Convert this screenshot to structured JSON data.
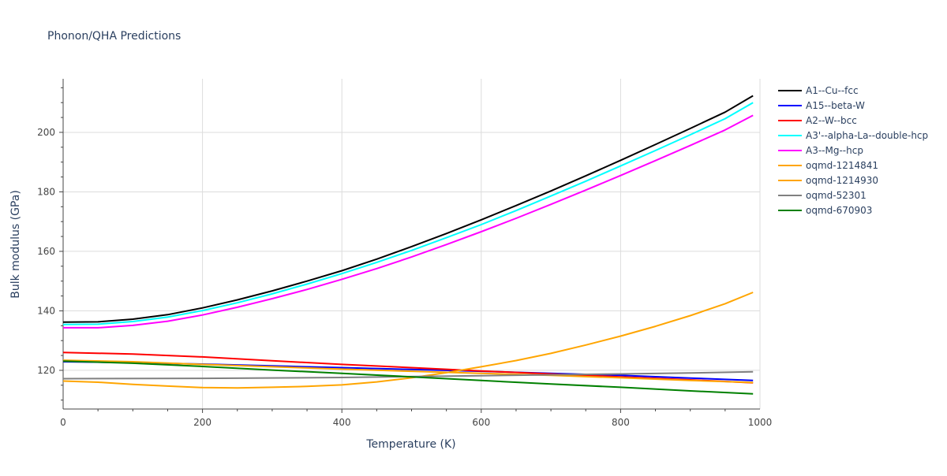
{
  "chart_data": {
    "type": "line",
    "title": "Phonon/QHA Predictions",
    "xlabel": "Temperature (K)",
    "ylabel": "Bulk modulus (GPa)",
    "xlim": [
      0,
      1000
    ],
    "ylim": [
      107,
      218
    ],
    "xticks": [
      0,
      200,
      400,
      600,
      800,
      1000
    ],
    "yticks": [
      120,
      140,
      160,
      180,
      200
    ],
    "grid": true,
    "legend_position": "right",
    "series": [
      {
        "name": "A1--Cu--fcc",
        "color": "#000000",
        "x": [
          0,
          50,
          100,
          150,
          200,
          250,
          300,
          350,
          400,
          450,
          500,
          550,
          600,
          650,
          700,
          750,
          800,
          850,
          900,
          950,
          990
        ],
        "y": [
          136.2,
          136.3,
          137.2,
          138.7,
          141.0,
          143.7,
          146.7,
          150.0,
          153.5,
          157.4,
          161.6,
          166.0,
          170.6,
          175.4,
          180.3,
          185.4,
          190.6,
          195.9,
          201.3,
          206.8,
          212.3
        ]
      },
      {
        "name": "A15--beta-W",
        "color": "#0000ff",
        "x": [
          0,
          100,
          200,
          300,
          400,
          500,
          600,
          700,
          800,
          900,
          990
        ],
        "y": [
          122.9,
          122.6,
          122.1,
          121.5,
          120.9,
          120.3,
          119.7,
          119.0,
          118.3,
          117.4,
          116.6
        ]
      },
      {
        "name": "A2--W--bcc",
        "color": "#ff0000",
        "x": [
          0,
          100,
          200,
          300,
          400,
          500,
          600,
          700,
          800,
          900,
          990
        ],
        "y": [
          126.0,
          125.5,
          124.5,
          123.2,
          122.0,
          120.9,
          119.8,
          118.8,
          117.8,
          116.8,
          115.8
        ]
      },
      {
        "name": "A3'--alpha-La--double-hcp",
        "color": "#00ffff",
        "x": [
          0,
          50,
          100,
          150,
          200,
          250,
          300,
          350,
          400,
          450,
          500,
          550,
          600,
          650,
          700,
          750,
          800,
          850,
          900,
          950,
          990
        ],
        "y": [
          135.4,
          135.5,
          136.4,
          137.9,
          140.1,
          142.7,
          145.7,
          149.0,
          152.5,
          156.3,
          160.3,
          164.6,
          169.0,
          173.7,
          178.6,
          183.6,
          188.7,
          193.9,
          199.2,
          204.6,
          210.0
        ]
      },
      {
        "name": "A3--Mg--hcp",
        "color": "#ff00ff",
        "x": [
          0,
          50,
          100,
          150,
          200,
          250,
          300,
          350,
          400,
          450,
          500,
          550,
          600,
          650,
          700,
          750,
          800,
          850,
          900,
          950,
          990
        ],
        "y": [
          134.3,
          134.3,
          135.1,
          136.5,
          138.6,
          141.2,
          144.1,
          147.2,
          150.6,
          154.2,
          158.1,
          162.3,
          166.6,
          171.1,
          175.8,
          180.6,
          185.5,
          190.5,
          195.6,
          200.8,
          205.7
        ]
      },
      {
        "name": "oqmd-1214841",
        "color": "#ffa500",
        "x": [
          0,
          100,
          200,
          300,
          400,
          500,
          600,
          700,
          800,
          900,
          990
        ],
        "y": [
          123.4,
          122.9,
          122.0,
          121.2,
          120.4,
          119.7,
          119.0,
          118.3,
          117.5,
          116.6,
          115.9
        ]
      },
      {
        "name": "oqmd-1214930",
        "color": "#ffa500",
        "x": [
          0,
          50,
          100,
          150,
          200,
          250,
          300,
          350,
          400,
          450,
          500,
          550,
          600,
          650,
          700,
          750,
          800,
          850,
          900,
          950,
          990
        ],
        "y": [
          116.4,
          116.0,
          115.3,
          114.7,
          114.2,
          114.1,
          114.3,
          114.6,
          115.1,
          116.1,
          117.5,
          119.2,
          121.2,
          123.3,
          125.7,
          128.5,
          131.5,
          134.8,
          138.4,
          142.4,
          146.2
        ]
      },
      {
        "name": "oqmd-52301",
        "color": "#808080",
        "x": [
          0,
          200,
          400,
          600,
          800,
          900,
          990
        ],
        "y": [
          117.2,
          117.3,
          117.6,
          118.2,
          118.8,
          119.1,
          119.5
        ]
      },
      {
        "name": "oqmd-670903",
        "color": "#008000",
        "x": [
          0,
          100,
          200,
          300,
          400,
          500,
          600,
          700,
          800,
          900,
          990
        ],
        "y": [
          123.1,
          122.4,
          121.3,
          120.1,
          119.0,
          117.8,
          116.6,
          115.4,
          114.3,
          113.1,
          112.1
        ]
      }
    ]
  }
}
